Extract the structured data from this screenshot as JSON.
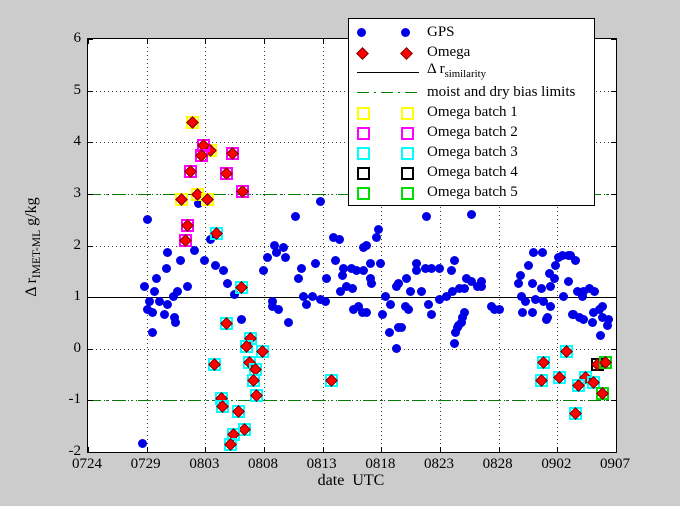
{
  "figure": {
    "background": "#cccccc",
    "xlabel": "date  UTC",
    "ylabel": {
      "prefix": "Δ r",
      "sub": "IMET-ML",
      "unit": "  g/kg"
    }
  },
  "legend": {
    "entries": [
      {
        "label": "GPS",
        "type": "dots",
        "color": "#0000e6"
      },
      {
        "label": "Omega",
        "type": "diamonds",
        "color": "#ff0000"
      },
      {
        "label": "Δ r",
        "sub": "similarity",
        "type": "line",
        "color": "#000000"
      },
      {
        "label": "moist and dry bias limits",
        "type": "dashed",
        "color": "#008000"
      },
      {
        "label": "Omega batch 1",
        "type": "squares",
        "color": "#ffff00"
      },
      {
        "label": "Omega batch 2",
        "type": "squares",
        "color": "#ff00ff"
      },
      {
        "label": "Omega batch 3",
        "type": "squares",
        "color": "#00ffff"
      },
      {
        "label": "Omega batch 4",
        "type": "squares",
        "color": "#000000"
      },
      {
        "label": "Omega batch 5",
        "type": "squares",
        "color": "#00dd00"
      }
    ]
  },
  "chart_data": {
    "type": "scatter",
    "title": "",
    "xlabel": "date UTC",
    "ylabel": "Delta r IMET-ML (g/kg)",
    "grid": "dotted",
    "x_axis": {
      "tick_labels": [
        "0724",
        "0729",
        "0803",
        "0808",
        "0813",
        "0818",
        "0823",
        "0828",
        "0902",
        "0907"
      ],
      "tick_days": [
        0,
        5,
        10,
        15,
        20,
        25,
        30,
        35,
        40,
        45
      ],
      "range_days": [
        0,
        45
      ],
      "note": "x stored as days since 0724"
    },
    "y_axis": {
      "ticks": [
        -2,
        -1,
        0,
        1,
        2,
        3,
        4,
        5,
        6
      ],
      "range": [
        -2,
        6
      ]
    },
    "ref_lines": {
      "similarity_y": 1.0,
      "bias_limit_upper_y": 3.0,
      "bias_limit_lower_y": -1.0
    },
    "batch_colors": {
      "1": "#ffff00",
      "2": "#ff00ff",
      "3": "#00ffff",
      "4": "#000000",
      "5": "#00dd00"
    },
    "series": [
      {
        "name": "GPS",
        "marker": "dot",
        "color": "#0000e6",
        "points": [
          [
            4.7,
            -1.85
          ],
          [
            4.9,
            1.2
          ],
          [
            5.1,
            2.5
          ],
          [
            5.1,
            0.75
          ],
          [
            5.3,
            0.9
          ],
          [
            5.5,
            0.7
          ],
          [
            5.5,
            0.3
          ],
          [
            5.7,
            1.1
          ],
          [
            5.9,
            1.35
          ],
          [
            6.1,
            0.9
          ],
          [
            6.6,
            0.65
          ],
          [
            6.7,
            1.55
          ],
          [
            6.8,
            1.85
          ],
          [
            6.8,
            0.85
          ],
          [
            7.3,
            1.0
          ],
          [
            7.4,
            0.6
          ],
          [
            7.5,
            0.5
          ],
          [
            7.7,
            1.1
          ],
          [
            7.9,
            1.7
          ],
          [
            8.5,
            1.2
          ],
          [
            9.1,
            1.9
          ],
          [
            9.5,
            2.8
          ],
          [
            10.0,
            1.7
          ],
          [
            10.5,
            2.1
          ],
          [
            10.9,
            1.6
          ],
          [
            11.6,
            1.5
          ],
          [
            11.9,
            1.25
          ],
          [
            12.5,
            1.05
          ],
          [
            13.1,
            0.55
          ],
          [
            15.0,
            1.5
          ],
          [
            15.3,
            1.75
          ],
          [
            15.8,
            0.9
          ],
          [
            15.8,
            0.8
          ],
          [
            15.9,
            2.0
          ],
          [
            16.1,
            1.85
          ],
          [
            16.3,
            0.75
          ],
          [
            16.7,
            1.95
          ],
          [
            16.9,
            1.75
          ],
          [
            17.1,
            0.5
          ],
          [
            17.7,
            2.55
          ],
          [
            18.0,
            1.35
          ],
          [
            18.2,
            1.55
          ],
          [
            18.4,
            1.0
          ],
          [
            18.7,
            0.85
          ],
          [
            19.2,
            1.0
          ],
          [
            19.4,
            1.65
          ],
          [
            19.9,
            2.85
          ],
          [
            19.9,
            0.95
          ],
          [
            20.3,
            0.9
          ],
          [
            20.4,
            1.35
          ],
          [
            21.0,
            2.15
          ],
          [
            21.1,
            1.7
          ],
          [
            21.5,
            2.1
          ],
          [
            21.6,
            1.1
          ],
          [
            21.7,
            1.4
          ],
          [
            21.8,
            1.55
          ],
          [
            22.1,
            1.2
          ],
          [
            22.5,
            1.55
          ],
          [
            22.6,
            1.15
          ],
          [
            22.7,
            0.75
          ],
          [
            22.9,
            1.5
          ],
          [
            23.1,
            0.8
          ],
          [
            23.4,
            0.7
          ],
          [
            23.5,
            1.95
          ],
          [
            23.5,
            1.5
          ],
          [
            23.8,
            2.0
          ],
          [
            23.8,
            0.7
          ],
          [
            24.1,
            1.65
          ],
          [
            24.1,
            1.35
          ],
          [
            24.2,
            1.25
          ],
          [
            24.6,
            2.15
          ],
          [
            24.8,
            2.3
          ],
          [
            25.0,
            1.65
          ],
          [
            25.1,
            0.65
          ],
          [
            25.4,
            1.0
          ],
          [
            25.7,
            0.3
          ],
          [
            25.8,
            0.85
          ],
          [
            26.3,
            0.0
          ],
          [
            26.3,
            1.2
          ],
          [
            26.5,
            1.25
          ],
          [
            26.5,
            0.4
          ],
          [
            26.8,
            0.4
          ],
          [
            27.1,
            0.8
          ],
          [
            27.2,
            1.35
          ],
          [
            27.4,
            0.75
          ],
          [
            27.5,
            1.1
          ],
          [
            28.0,
            1.65
          ],
          [
            28.0,
            1.5
          ],
          [
            28.5,
            1.1
          ],
          [
            28.8,
            1.55
          ],
          [
            28.9,
            2.55
          ],
          [
            29.1,
            0.85
          ],
          [
            29.3,
            1.55
          ],
          [
            29.3,
            0.65
          ],
          [
            30.0,
            1.55
          ],
          [
            30.0,
            0.95
          ],
          [
            30.6,
            1.0
          ],
          [
            31.0,
            1.5
          ],
          [
            31.1,
            1.1
          ],
          [
            31.3,
            1.7
          ],
          [
            31.3,
            0.1
          ],
          [
            31.4,
            0.3
          ],
          [
            31.5,
            0.4
          ],
          [
            31.6,
            0.45
          ],
          [
            31.7,
            1.15
          ],
          [
            31.9,
            0.5
          ],
          [
            32.0,
            0.6
          ],
          [
            32.1,
            1.15
          ],
          [
            32.1,
            0.7
          ],
          [
            32.3,
            1.35
          ],
          [
            32.7,
            2.6
          ],
          [
            32.7,
            1.3
          ],
          [
            33.2,
            1.2
          ],
          [
            33.6,
            1.3
          ],
          [
            33.6,
            1.2
          ],
          [
            34.4,
            0.8
          ],
          [
            34.7,
            0.75
          ],
          [
            35.1,
            0.75
          ],
          [
            36.7,
            1.25
          ],
          [
            36.9,
            1.4
          ],
          [
            37.0,
            1.0
          ],
          [
            37.1,
            0.7
          ],
          [
            37.3,
            0.9
          ],
          [
            37.6,
            1.6
          ],
          [
            37.9,
            1.25
          ],
          [
            37.9,
            0.7
          ],
          [
            38.0,
            1.85
          ],
          [
            38.2,
            0.95
          ],
          [
            38.7,
            1.15
          ],
          [
            38.8,
            1.85
          ],
          [
            38.9,
            0.9
          ],
          [
            39.1,
            0.55
          ],
          [
            39.2,
            0.6
          ],
          [
            39.4,
            1.45
          ],
          [
            39.5,
            1.2
          ],
          [
            39.5,
            0.8
          ],
          [
            39.8,
            1.35
          ],
          [
            39.9,
            1.6
          ],
          [
            40.1,
            1.75
          ],
          [
            40.5,
            1.8
          ],
          [
            40.6,
            1.0
          ],
          [
            41.0,
            1.8
          ],
          [
            41.0,
            1.3
          ],
          [
            41.2,
            1.8
          ],
          [
            41.3,
            0.65
          ],
          [
            41.4,
            0.65
          ],
          [
            41.6,
            1.7
          ],
          [
            41.8,
            1.1
          ],
          [
            41.9,
            0.6
          ],
          [
            42.2,
            1.0
          ],
          [
            42.3,
            1.1
          ],
          [
            42.3,
            0.55
          ],
          [
            42.8,
            1.15
          ],
          [
            43.0,
            0.5
          ],
          [
            43.1,
            0.7
          ],
          [
            43.2,
            1.1
          ],
          [
            43.6,
            0.75
          ],
          [
            43.7,
            0.25
          ],
          [
            43.9,
            0.8
          ],
          [
            43.9,
            0.6
          ],
          [
            44.3,
            0.45
          ],
          [
            44.4,
            0.55
          ]
        ]
      },
      {
        "name": "Omega",
        "marker": "diamond",
        "color": "#ff0000",
        "note": "third value = Omega batch number (1-5)",
        "points": [
          [
            8.9,
            4.4,
            1
          ],
          [
            10.4,
            3.85,
            1
          ],
          [
            7.9,
            2.9,
            1
          ],
          [
            9.3,
            3.0,
            1
          ],
          [
            10.1,
            2.9,
            1
          ],
          [
            9.8,
            3.95,
            2
          ],
          [
            9.6,
            3.75,
            2
          ],
          [
            12.3,
            3.8,
            2
          ],
          [
            8.7,
            3.45,
            2
          ],
          [
            11.8,
            3.4,
            2
          ],
          [
            13.1,
            3.05,
            2
          ],
          [
            8.4,
            2.4,
            2
          ],
          [
            8.3,
            2.1,
            2
          ],
          [
            10.9,
            2.25,
            3
          ],
          [
            13.0,
            1.2,
            3
          ],
          [
            11.8,
            0.5,
            3
          ],
          [
            13.8,
            0.2,
            3
          ],
          [
            13.5,
            0.05,
            3
          ],
          [
            14.8,
            -0.05,
            3
          ],
          [
            13.7,
            -0.25,
            3
          ],
          [
            10.7,
            -0.3,
            3
          ],
          [
            14.2,
            -0.4,
            3
          ],
          [
            14.1,
            -0.6,
            3
          ],
          [
            14.3,
            -0.9,
            3
          ],
          [
            11.3,
            -0.95,
            3
          ],
          [
            11.4,
            -1.1,
            3
          ],
          [
            12.8,
            -1.2,
            3
          ],
          [
            13.3,
            -1.55,
            3
          ],
          [
            12.4,
            -1.65,
            3
          ],
          [
            12.1,
            -1.85,
            3
          ],
          [
            20.7,
            -0.6,
            3
          ],
          [
            40.7,
            -0.05,
            3
          ],
          [
            38.8,
            -0.25,
            3
          ],
          [
            40.1,
            -0.55,
            3
          ],
          [
            38.6,
            -0.6,
            3
          ],
          [
            42.4,
            -0.55,
            3
          ],
          [
            43.0,
            -0.65,
            3
          ],
          [
            41.8,
            -0.7,
            3
          ],
          [
            41.5,
            -1.25,
            3
          ],
          [
            43.4,
            -0.3,
            4
          ],
          [
            44.1,
            -0.25,
            5
          ],
          [
            43.8,
            -0.85,
            5
          ]
        ]
      }
    ]
  }
}
